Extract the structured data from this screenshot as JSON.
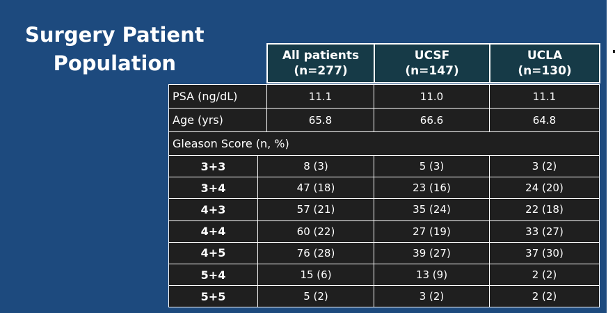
{
  "title": {
    "line1": "Surgery Patient",
    "line2": "Population"
  },
  "columns": [
    {
      "name": "All patients",
      "n": "(n=277)"
    },
    {
      "name": "UCSF",
      "n": "(n=147)"
    },
    {
      "name": "UCLA",
      "n": "(n=130)"
    }
  ],
  "rows": [
    {
      "label": "PSA (ng/dL)",
      "values": [
        "11.1",
        "11.0",
        "11.1"
      ]
    },
    {
      "label": "Age (yrs)",
      "values": [
        "65.8",
        "66.6",
        "64.8"
      ]
    }
  ],
  "gleason": {
    "header": "Gleason Score (n, %)",
    "rows": [
      {
        "label": "3+3",
        "values": [
          "8 (3)",
          "5 (3)",
          "3 (2)"
        ]
      },
      {
        "label": "3+4",
        "values": [
          "47 (18)",
          "23 (16)",
          "24 (20)"
        ]
      },
      {
        "label": "4+3",
        "values": [
          "57 (21)",
          "35 (24)",
          "22 (18)"
        ]
      },
      {
        "label": "4+4",
        "values": [
          "60 (22)",
          "27 (19)",
          "33 (27)"
        ]
      },
      {
        "label": "4+5",
        "values": [
          "76 (28)",
          "39 (27)",
          "37 (30)"
        ]
      },
      {
        "label": "5+4",
        "values": [
          "15 (6)",
          "13 (9)",
          "2 (2)"
        ]
      },
      {
        "label": "5+5",
        "values": [
          "5 (2)",
          "3 (2)",
          "2 (2)"
        ]
      }
    ]
  },
  "colors": {
    "slide_background": "#1d4a7e",
    "header_fill": "#163a47",
    "cell_fill": "#1f1f1f",
    "text": "#ffffff"
  }
}
